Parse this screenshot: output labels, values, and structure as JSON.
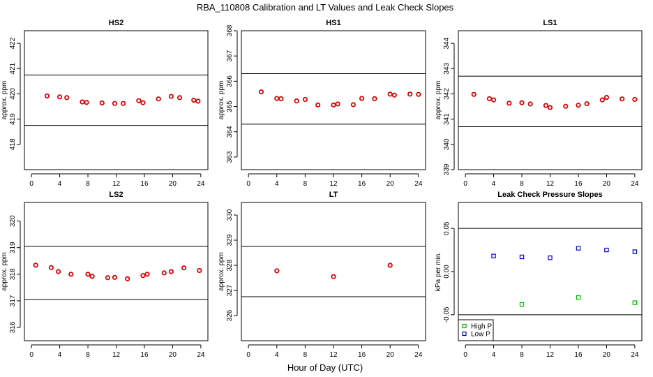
{
  "title": "RBA_110808  Calibration and LT Values and Leak Check Slopes",
  "xlabel": "Hour of Day (UTC)",
  "chart_data": [
    {
      "type": "scatter",
      "title": "HS2",
      "ylabel": "approx. ppm",
      "xlim": [
        -1,
        25
      ],
      "ylim": [
        417,
        422.5
      ],
      "xticks": [
        0,
        4,
        8,
        12,
        16,
        20,
        24
      ],
      "yticks": [
        418,
        419,
        420,
        421,
        422
      ],
      "hlines": [
        420.75,
        418.75
      ],
      "series": [
        {
          "color": "#dd0000",
          "marker": "circle",
          "x": [
            2.2,
            4.0,
            5.0,
            7.2,
            7.8,
            10.0,
            11.8,
            13.0,
            15.2,
            15.8,
            18.0,
            19.8,
            21.0,
            23.0,
            23.6
          ],
          "y": [
            419.92,
            419.88,
            419.85,
            419.68,
            419.66,
            419.64,
            419.62,
            419.62,
            419.73,
            419.65,
            419.8,
            419.9,
            419.85,
            419.75,
            419.71
          ]
        }
      ]
    },
    {
      "type": "scatter",
      "title": "HS1",
      "ylabel": "approx. ppm",
      "xlim": [
        -1,
        25
      ],
      "ylim": [
        362.5,
        368
      ],
      "xticks": [
        0,
        4,
        8,
        12,
        16,
        20,
        24
      ],
      "yticks": [
        363,
        364,
        365,
        366,
        367,
        368
      ],
      "hlines": [
        366.3,
        364.3
      ],
      "series": [
        {
          "color": "#dd0000",
          "marker": "circle",
          "x": [
            1.8,
            4.0,
            4.6,
            6.8,
            8.0,
            9.8,
            12.0,
            12.6,
            14.8,
            16.0,
            17.8,
            20.0,
            20.6,
            22.8,
            24.0
          ],
          "y": [
            365.58,
            365.32,
            365.31,
            365.22,
            365.28,
            365.06,
            365.06,
            365.1,
            365.07,
            365.32,
            365.31,
            365.49,
            365.45,
            365.49,
            365.48
          ]
        }
      ]
    },
    {
      "type": "scatter",
      "title": "LS1",
      "ylabel": "approx. ppm",
      "xlim": [
        -1,
        25
      ],
      "ylim": [
        339,
        344.5
      ],
      "xticks": [
        0,
        4,
        8,
        12,
        16,
        20,
        24
      ],
      "yticks": [
        339,
        340,
        341,
        342,
        343,
        344
      ],
      "hlines": [
        342.7,
        340.7
      ],
      "series": [
        {
          "color": "#dd0000",
          "marker": "circle",
          "x": [
            1.2,
            3.4,
            4.0,
            6.2,
            8.0,
            9.2,
            11.4,
            12.0,
            14.2,
            16.0,
            17.2,
            19.4,
            20.0,
            22.2,
            24.0
          ],
          "y": [
            341.98,
            341.81,
            341.76,
            341.63,
            341.65,
            341.6,
            341.54,
            341.46,
            341.51,
            341.55,
            341.61,
            341.76,
            341.86,
            341.8,
            341.78
          ]
        }
      ]
    },
    {
      "type": "scatter",
      "title": "LS2",
      "ylabel": "approx. ppm",
      "xlim": [
        -1,
        25
      ],
      "ylim": [
        315.5,
        320.7
      ],
      "xticks": [
        0,
        4,
        8,
        12,
        16,
        20,
        24
      ],
      "yticks": [
        316,
        317,
        318,
        319,
        320
      ],
      "hlines": [
        319.05,
        317.05
      ],
      "series": [
        {
          "color": "#dd0000",
          "marker": "circle",
          "x": [
            0.6,
            2.8,
            3.8,
            5.6,
            8.0,
            8.6,
            10.8,
            11.8,
            13.6,
            15.8,
            16.4,
            18.8,
            19.8,
            21.6,
            23.8
          ],
          "y": [
            318.34,
            318.25,
            318.1,
            318.0,
            318.0,
            317.92,
            317.87,
            317.88,
            317.83,
            317.95,
            318.0,
            318.05,
            318.1,
            318.24,
            318.14
          ]
        }
      ]
    },
    {
      "type": "scatter",
      "title": "LT",
      "ylabel": "approx. ppm",
      "xlim": [
        -1,
        25
      ],
      "ylim": [
        325,
        330.5
      ],
      "xticks": [
        0,
        4,
        8,
        12,
        16,
        20,
        24
      ],
      "yticks": [
        326,
        327,
        328,
        329,
        330
      ],
      "hlines": [
        328.75,
        326.75
      ],
      "series": [
        {
          "color": "#dd0000",
          "marker": "circle",
          "x": [
            4.0,
            12.0,
            20.0
          ],
          "y": [
            327.78,
            327.55,
            328.0
          ]
        }
      ]
    },
    {
      "type": "scatter",
      "title": "Leak Check Pressure Slopes",
      "ylabel": "kPa per min.",
      "xlim": [
        -1,
        25
      ],
      "ylim": [
        -0.08,
        0.08
      ],
      "xticks": [
        0,
        4,
        8,
        12,
        16,
        20,
        24
      ],
      "yticks": [
        -0.05,
        0.0,
        0.05
      ],
      "ytick_labels": [
        "-0.05",
        "0.00",
        "0.05"
      ],
      "hlines": [
        0.05,
        -0.05
      ],
      "legend": "bottom-left",
      "series": [
        {
          "name": "High P",
          "color": "#00bb00",
          "marker": "square",
          "x": [
            8.0,
            16.0,
            24.0
          ],
          "y": [
            -0.038,
            -0.03,
            -0.036
          ]
        },
        {
          "name": "Low P",
          "color": "#0000cc",
          "marker": "square",
          "x": [
            4.0,
            8.0,
            12.0,
            16.0,
            20.0,
            24.0
          ],
          "y": [
            0.018,
            0.017,
            0.016,
            0.027,
            0.025,
            0.023
          ]
        }
      ]
    }
  ]
}
